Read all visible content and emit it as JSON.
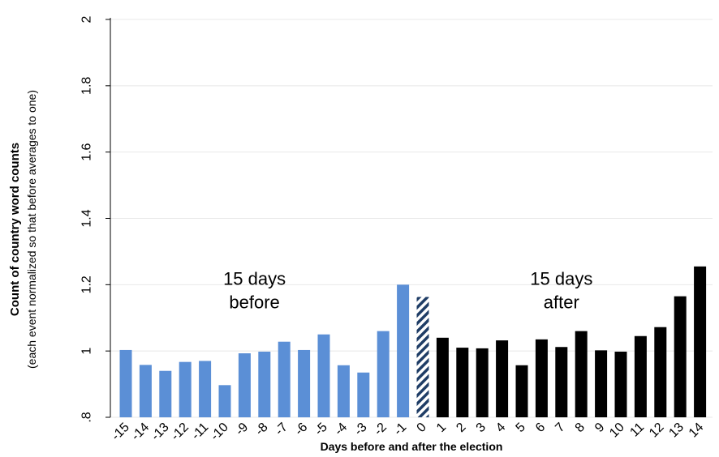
{
  "chart_data": {
    "type": "bar",
    "title": "",
    "xlabel": "Days before and after the election",
    "ylabel": "Count of country word counts",
    "ylabel_sub": "(each event normalized so that before averages to one)",
    "ylim": [
      0.8,
      2.0
    ],
    "yticks": [
      ".8",
      "1",
      "1.2",
      "1.4",
      "1.6",
      "1.8",
      "2"
    ],
    "grid": true,
    "categories": [
      "-15",
      "-14",
      "-13",
      "-12",
      "-11",
      "-10",
      "-9",
      "-8",
      "-7",
      "-6",
      "-5",
      "-4",
      "-3",
      "-2",
      "-1",
      "0",
      "1",
      "2",
      "3",
      "4",
      "5",
      "6",
      "7",
      "8",
      "9",
      "10",
      "11",
      "12",
      "13",
      "14"
    ],
    "values": [
      1.003,
      0.958,
      0.94,
      0.967,
      0.97,
      0.897,
      0.993,
      0.998,
      1.028,
      1.003,
      1.05,
      0.957,
      0.935,
      1.06,
      1.2,
      1.163,
      1.04,
      1.01,
      1.008,
      1.032,
      0.957,
      1.035,
      1.012,
      1.06,
      1.002,
      0.998,
      1.045,
      1.072,
      1.165,
      1.255
    ],
    "group": [
      "before",
      "before",
      "before",
      "before",
      "before",
      "before",
      "before",
      "before",
      "before",
      "before",
      "before",
      "before",
      "before",
      "before",
      "before",
      "election",
      "after",
      "after",
      "after",
      "after",
      "after",
      "after",
      "after",
      "after",
      "after",
      "after",
      "after",
      "after",
      "after",
      "after"
    ],
    "colors": {
      "before": "#5b8fd6",
      "election_fill": "#1f3d66",
      "election_stripe": "#ffffff",
      "after": "#000000",
      "grid": "#e8e8e8"
    },
    "annotations": [
      {
        "lines": [
          "15 days",
          "before"
        ],
        "at_category": "-8.5",
        "y": 1.2
      },
      {
        "lines": [
          "15 days",
          "after"
        ],
        "at_category": "7",
        "y": 1.2
      }
    ]
  }
}
